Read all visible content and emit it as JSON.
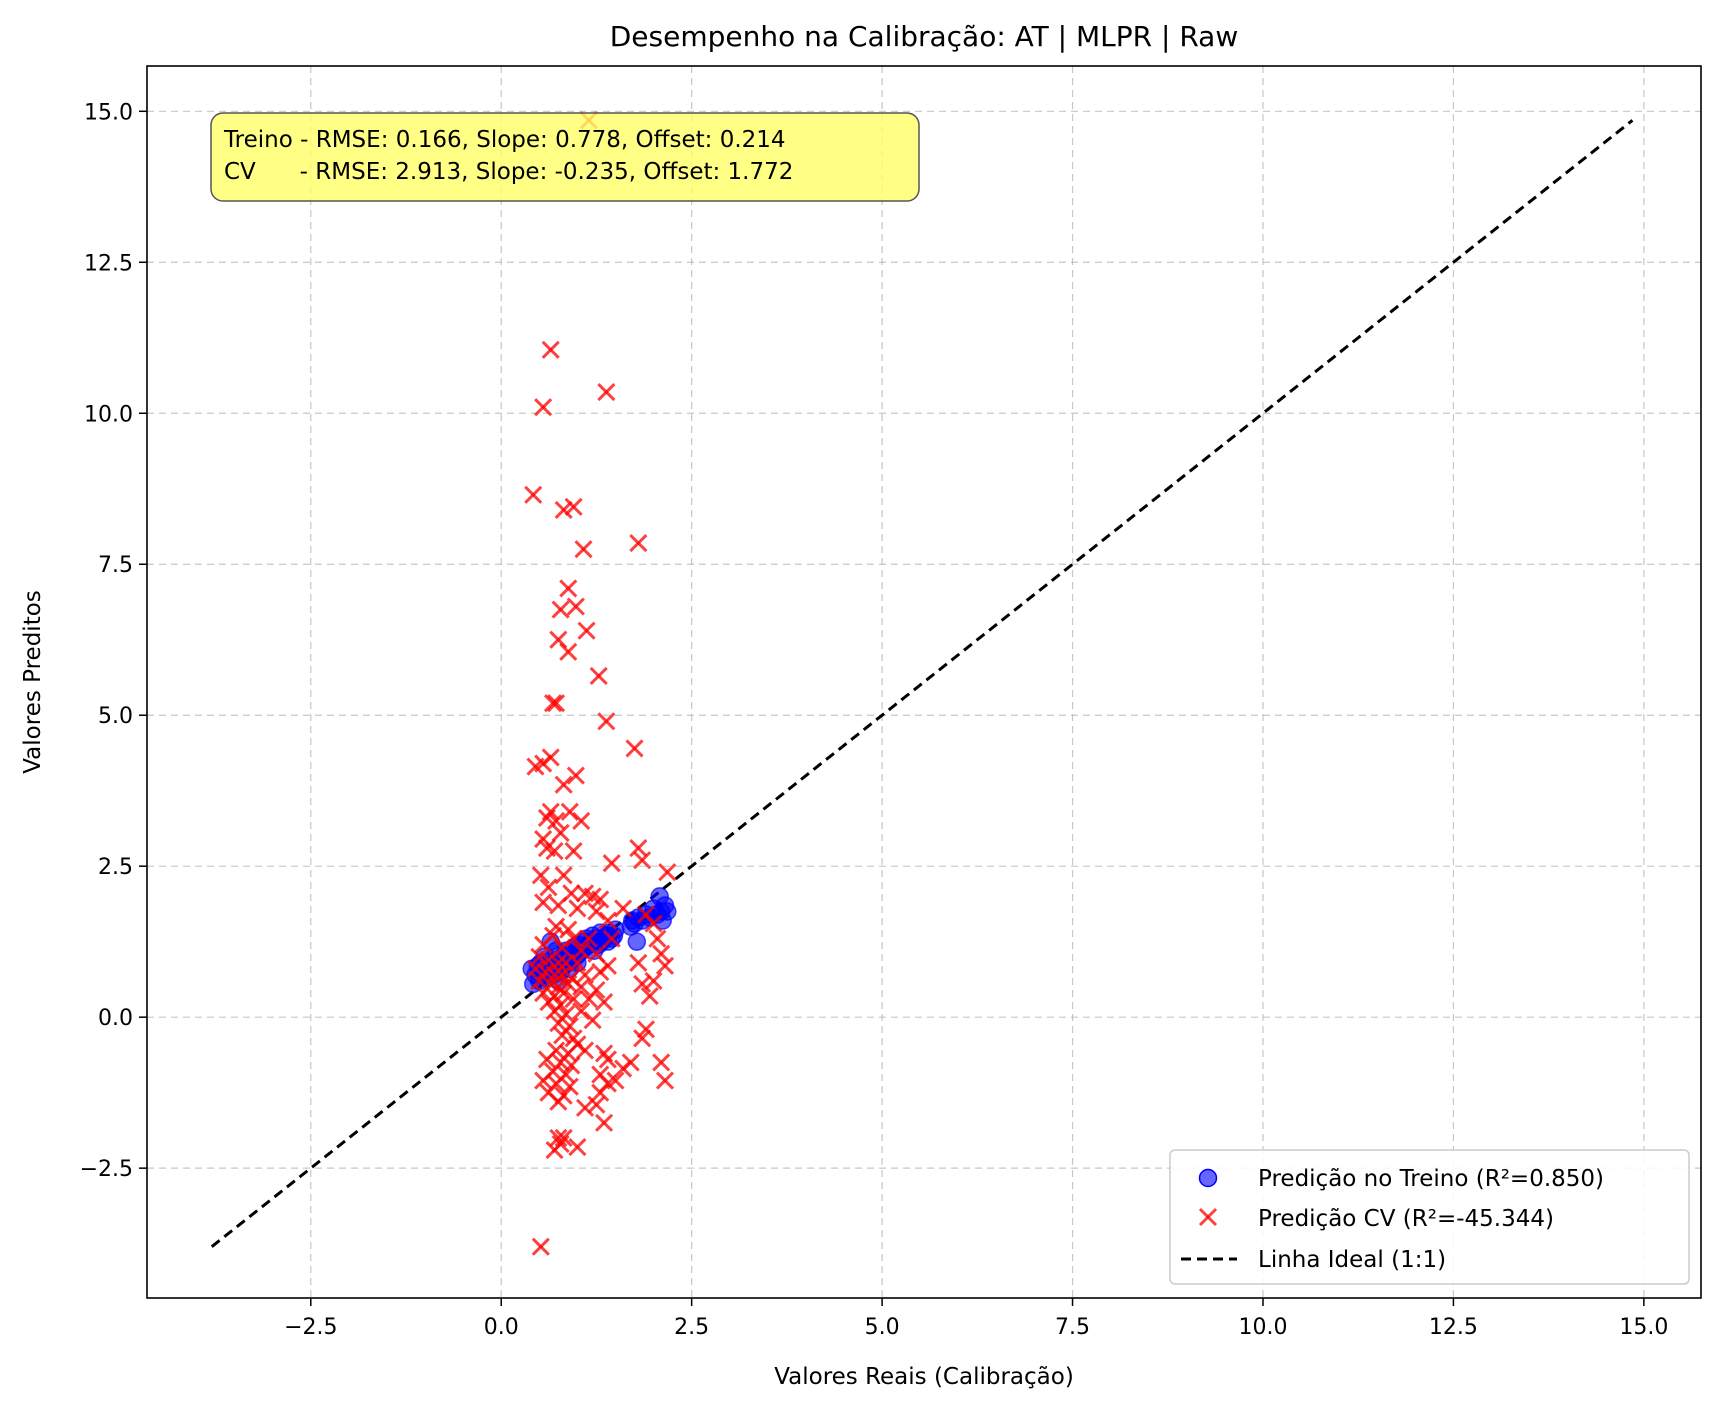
{
  "chart_data": {
    "type": "scatter",
    "title": "Desempenho na Calibração: AT | MLPR | Raw",
    "xlabel": "Valores Reais (Calibração)",
    "ylabel": "Valores Preditos",
    "xlim": [
      -4.65,
      15.75
    ],
    "ylim": [
      -4.65,
      15.75
    ],
    "xticks": [
      -2.5,
      0.0,
      2.5,
      5.0,
      7.5,
      10.0,
      12.5,
      15.0
    ],
    "yticks": [
      -2.5,
      0.0,
      2.5,
      5.0,
      7.5,
      10.0,
      12.5,
      15.0
    ],
    "xtick_labels": [
      "−2.5",
      "0.0",
      "2.5",
      "5.0",
      "7.5",
      "10.0",
      "12.5",
      "15.0"
    ],
    "ytick_labels": [
      "−2.5",
      "0.0",
      "2.5",
      "5.0",
      "7.5",
      "10.0",
      "12.5",
      "15.0"
    ],
    "grid": true,
    "legend_position": "bottom-right",
    "metrics_box": {
      "line1": "Treino - RMSE: 0.166, Slope: 0.778, Offset: 0.214",
      "line2": "CV      - RMSE: 2.913, Slope: -0.235, Offset: 1.772",
      "background": "#ffff66"
    },
    "series": [
      {
        "name": "Predição no Treino (R²=0.850)",
        "marker": "circle",
        "color": "#0000ff",
        "points": [
          [
            0.4,
            0.8
          ],
          [
            0.42,
            0.55
          ],
          [
            0.45,
            0.7
          ],
          [
            0.48,
            0.85
          ],
          [
            0.5,
            0.6
          ],
          [
            0.52,
            0.9
          ],
          [
            0.55,
            0.75
          ],
          [
            0.57,
            1.0
          ],
          [
            0.6,
            0.65
          ],
          [
            0.62,
            0.8
          ],
          [
            0.65,
            1.25
          ],
          [
            0.66,
            0.95
          ],
          [
            0.68,
            0.7
          ],
          [
            0.7,
            0.9
          ],
          [
            0.72,
            1.1
          ],
          [
            0.74,
            0.8
          ],
          [
            0.76,
            0.95
          ],
          [
            0.78,
            0.75
          ],
          [
            0.8,
            1.0
          ],
          [
            0.82,
            0.85
          ],
          [
            0.85,
            1.1
          ],
          [
            0.88,
            0.9
          ],
          [
            0.9,
            1.05
          ],
          [
            0.92,
            0.95
          ],
          [
            0.95,
            1.15
          ],
          [
            0.98,
            1.0
          ],
          [
            1.0,
            1.2
          ],
          [
            1.02,
            1.05
          ],
          [
            1.05,
            1.1
          ],
          [
            1.08,
            1.25
          ],
          [
            1.1,
            1.15
          ],
          [
            1.12,
            1.3
          ],
          [
            1.15,
            1.2
          ],
          [
            1.18,
            1.25
          ],
          [
            1.2,
            1.35
          ],
          [
            1.22,
            1.1
          ],
          [
            1.25,
            1.3
          ],
          [
            1.28,
            1.2
          ],
          [
            1.3,
            1.4
          ],
          [
            1.32,
            1.25
          ],
          [
            1.35,
            1.3
          ],
          [
            1.38,
            1.35
          ],
          [
            1.4,
            1.25
          ],
          [
            1.42,
            1.4
          ],
          [
            1.45,
            1.3
          ],
          [
            1.48,
            1.35
          ],
          [
            1.5,
            1.45
          ],
          [
            1.7,
            1.5
          ],
          [
            1.72,
            1.6
          ],
          [
            1.75,
            1.55
          ],
          [
            1.78,
            1.25
          ],
          [
            1.8,
            1.65
          ],
          [
            1.85,
            1.6
          ],
          [
            1.9,
            1.7
          ],
          [
            1.95,
            1.65
          ],
          [
            2.0,
            1.8
          ],
          [
            2.05,
            1.7
          ],
          [
            2.08,
            2.0
          ],
          [
            2.1,
            1.75
          ],
          [
            2.12,
            1.6
          ],
          [
            2.15,
            1.85
          ],
          [
            2.18,
            1.75
          ],
          [
            1.0,
            0.9
          ],
          [
            0.9,
            0.8
          ],
          [
            0.75,
            0.6
          ]
        ]
      },
      {
        "name": "Predição CV (R²=-45.344)",
        "marker": "x",
        "color": "#ff0000",
        "points": [
          [
            1.15,
            14.85
          ],
          [
            0.65,
            11.05
          ],
          [
            1.38,
            10.35
          ],
          [
            0.55,
            10.1
          ],
          [
            0.42,
            8.65
          ],
          [
            0.82,
            8.4
          ],
          [
            0.95,
            8.45
          ],
          [
            1.8,
            7.85
          ],
          [
            1.08,
            7.75
          ],
          [
            0.88,
            7.1
          ],
          [
            0.98,
            6.8
          ],
          [
            0.78,
            6.75
          ],
          [
            1.12,
            6.4
          ],
          [
            0.75,
            6.25
          ],
          [
            0.88,
            6.05
          ],
          [
            1.28,
            5.65
          ],
          [
            0.68,
            5.2
          ],
          [
            0.72,
            5.2
          ],
          [
            1.38,
            4.9
          ],
          [
            1.75,
            4.45
          ],
          [
            0.45,
            4.15
          ],
          [
            0.55,
            4.2
          ],
          [
            0.65,
            4.3
          ],
          [
            0.98,
            4.0
          ],
          [
            0.82,
            3.85
          ],
          [
            0.65,
            3.4
          ],
          [
            0.6,
            3.3
          ],
          [
            0.72,
            3.25
          ],
          [
            0.9,
            3.4
          ],
          [
            1.05,
            3.25
          ],
          [
            0.78,
            3.05
          ],
          [
            0.55,
            2.95
          ],
          [
            0.6,
            2.8
          ],
          [
            0.7,
            2.75
          ],
          [
            0.95,
            2.75
          ],
          [
            1.45,
            2.55
          ],
          [
            1.8,
            2.8
          ],
          [
            1.85,
            2.6
          ],
          [
            2.18,
            2.4
          ],
          [
            0.52,
            2.35
          ],
          [
            0.82,
            2.35
          ],
          [
            0.62,
            2.15
          ],
          [
            0.92,
            2.05
          ],
          [
            1.1,
            2.05
          ],
          [
            1.2,
            2.0
          ],
          [
            1.3,
            1.95
          ],
          [
            0.55,
            1.9
          ],
          [
            0.75,
            1.85
          ],
          [
            1.0,
            1.8
          ],
          [
            1.25,
            1.75
          ],
          [
            1.4,
            1.6
          ],
          [
            1.6,
            1.8
          ],
          [
            1.9,
            1.7
          ],
          [
            2.0,
            1.55
          ],
          [
            0.72,
            1.5
          ],
          [
            0.88,
            1.45
          ],
          [
            1.15,
            1.3
          ],
          [
            0.68,
            1.35
          ],
          [
            0.95,
            1.3
          ],
          [
            1.45,
            1.3
          ],
          [
            2.05,
            1.3
          ],
          [
            0.55,
            1.2
          ],
          [
            0.8,
            1.15
          ],
          [
            1.05,
            1.1
          ],
          [
            1.25,
            1.05
          ],
          [
            2.1,
            1.05
          ],
          [
            0.5,
            1.0
          ],
          [
            0.62,
            0.95
          ],
          [
            0.75,
            0.9
          ],
          [
            0.85,
            0.9
          ],
          [
            1.0,
            0.9
          ],
          [
            1.4,
            0.85
          ],
          [
            1.8,
            0.9
          ],
          [
            2.15,
            0.85
          ],
          [
            0.45,
            0.8
          ],
          [
            0.58,
            0.75
          ],
          [
            0.7,
            0.7
          ],
          [
            0.8,
            0.7
          ],
          [
            0.92,
            0.65
          ],
          [
            1.1,
            0.7
          ],
          [
            1.3,
            0.75
          ],
          [
            0.5,
            0.6
          ],
          [
            0.65,
            0.55
          ],
          [
            0.75,
            0.5
          ],
          [
            0.88,
            0.55
          ],
          [
            1.05,
            0.5
          ],
          [
            2.0,
            0.6
          ],
          [
            1.85,
            0.55
          ],
          [
            0.55,
            0.4
          ],
          [
            0.7,
            0.35
          ],
          [
            0.82,
            0.4
          ],
          [
            1.25,
            0.45
          ],
          [
            0.62,
            0.25
          ],
          [
            0.78,
            0.2
          ],
          [
            0.95,
            0.3
          ],
          [
            1.15,
            0.3
          ],
          [
            1.35,
            0.25
          ],
          [
            1.95,
            0.35
          ],
          [
            0.7,
            0.1
          ],
          [
            0.85,
            0.05
          ],
          [
            1.05,
            0.1
          ],
          [
            0.75,
            -0.1
          ],
          [
            0.9,
            -0.15
          ],
          [
            1.2,
            -0.05
          ],
          [
            0.8,
            -0.3
          ],
          [
            0.95,
            -0.35
          ],
          [
            1.0,
            -0.45
          ],
          [
            0.72,
            -0.55
          ],
          [
            0.88,
            -0.6
          ],
          [
            1.1,
            -0.55
          ],
          [
            1.35,
            -0.6
          ],
          [
            1.9,
            -0.2
          ],
          [
            1.85,
            -0.35
          ],
          [
            0.6,
            -0.7
          ],
          [
            0.78,
            -0.75
          ],
          [
            0.92,
            -0.8
          ],
          [
            1.4,
            -0.7
          ],
          [
            1.7,
            -0.75
          ],
          [
            2.1,
            -0.75
          ],
          [
            0.68,
            -0.9
          ],
          [
            0.85,
            -0.95
          ],
          [
            1.3,
            -0.95
          ],
          [
            1.6,
            -0.85
          ],
          [
            0.55,
            -1.05
          ],
          [
            0.72,
            -1.1
          ],
          [
            0.9,
            -1.15
          ],
          [
            1.4,
            -1.1
          ],
          [
            1.5,
            -1.05
          ],
          [
            2.15,
            -1.05
          ],
          [
            0.62,
            -1.25
          ],
          [
            0.82,
            -1.3
          ],
          [
            1.3,
            -1.25
          ],
          [
            0.75,
            -1.4
          ],
          [
            1.1,
            -1.5
          ],
          [
            1.25,
            -1.45
          ],
          [
            1.35,
            -1.75
          ],
          [
            0.75,
            -2.0
          ],
          [
            0.82,
            -2.0
          ],
          [
            1.0,
            -2.15
          ],
          [
            0.7,
            -2.2
          ],
          [
            0.78,
            -2.1
          ],
          [
            0.52,
            -3.8
          ]
        ]
      }
    ],
    "ideal_line": {
      "name": "Linha Ideal (1:1)",
      "x": [
        -3.8,
        14.85
      ],
      "y": [
        -3.8,
        14.85
      ],
      "color": "#000000"
    }
  }
}
